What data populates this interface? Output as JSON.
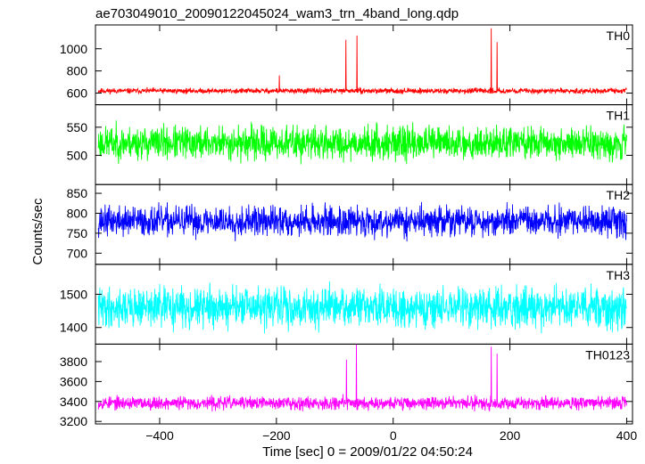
{
  "chart_data": {
    "type": "line",
    "title": "ae703049010_20090122045024_wam3_trn_4band_long.qdp",
    "xlabel": "Time [sec] 0 = 2009/01/22 04:50:24",
    "ylabel": "Counts/sec",
    "xlim": [
      -510,
      410
    ],
    "x_ticks": [
      -400,
      -200,
      0,
      200,
      400
    ],
    "x_tick_labels": [
      "−400",
      "−200",
      "0",
      "200",
      "400"
    ],
    "grid": false,
    "panels": [
      {
        "name": "TH0",
        "color": "#ff0000",
        "ylim": [
          495,
          1215
        ],
        "yticks": [
          600,
          800,
          1000
        ],
        "baseline": 620,
        "noise": 20,
        "seed": 11,
        "spikes": [
          {
            "x": -195,
            "value": 760
          },
          {
            "x": -81,
            "value": 1080
          },
          {
            "x": -62,
            "value": 1120
          },
          {
            "x": 168,
            "value": 1185
          },
          {
            "x": 178,
            "value": 1060
          }
        ]
      },
      {
        "name": "TH1",
        "color": "#00ff00",
        "ylim": [
          448,
          590
        ],
        "yticks": [
          500,
          550
        ],
        "baseline": 522,
        "noise": 25,
        "seed": 23,
        "spikes": []
      },
      {
        "name": "TH2",
        "color": "#0000ff",
        "ylim": [
          672,
          872
        ],
        "yticks": [
          700,
          750,
          800,
          850
        ],
        "baseline": 780,
        "noise": 32,
        "seed": 37,
        "spikes": []
      },
      {
        "name": "TH3",
        "color": "#00ffff",
        "ylim": [
          1350,
          1590
        ],
        "yticks": [
          1400,
          1500
        ],
        "baseline": 1460,
        "noise": 50,
        "seed": 41,
        "spikes": []
      },
      {
        "name": "TH0123",
        "color": "#ff00ff",
        "ylim": [
          3175,
          3975
        ],
        "yticks": [
          3200,
          3400,
          3600,
          3800
        ],
        "baseline": 3385,
        "noise": 55,
        "seed": 53,
        "spikes": [
          {
            "x": -80,
            "value": 3820
          },
          {
            "x": -63,
            "value": 3975
          },
          {
            "x": 168,
            "value": 3950
          },
          {
            "x": 178,
            "value": 3880
          }
        ]
      }
    ]
  }
}
